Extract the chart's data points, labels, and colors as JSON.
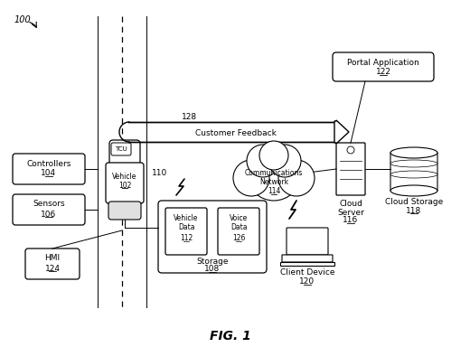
{
  "bg_color": "#ffffff",
  "fig_title": "FIG. 1",
  "label_100": "100",
  "label_110": "110",
  "label_128": "128",
  "customer_feedback": "Customer Feedback",
  "controllers_line1": "Controllers",
  "controllers_line2": "104",
  "sensors_line1": "Sensors",
  "sensors_line2": "106",
  "hmi_line1": "HMI",
  "hmi_line2": "124",
  "tcu_label": "TCU",
  "vehicle_line1": "Vehicle",
  "vehicle_line2": "102",
  "storage_line1": "Storage",
  "storage_line2": "108",
  "vdata_line1": "Vehicle",
  "vdata_line2": "Data",
  "vdata_line3": "112",
  "voicedata_line1": "Voice",
  "voicedata_line2": "Data",
  "voicedata_line3": "126",
  "comm_line1": "Communications",
  "comm_line2": "Network",
  "comm_line3": "114",
  "cloud_server_line1": "Cloud",
  "cloud_server_line2": "Server",
  "cloud_server_line3": "116",
  "cloud_storage_line1": "Cloud Storage",
  "cloud_storage_line2": "118",
  "portal_line1": "Portal Application",
  "portal_line2": "122",
  "client_line1": "Client Device",
  "client_line2": "120"
}
